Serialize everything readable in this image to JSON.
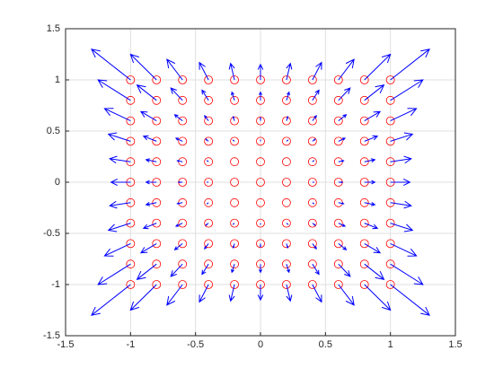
{
  "chart_data": {
    "type": "quiver",
    "x": [
      -1,
      -0.8,
      -0.6,
      -0.4,
      -0.2,
      0,
      0.2,
      0.4,
      0.6,
      0.8,
      1
    ],
    "y": [
      -1,
      -0.8,
      -0.6,
      -0.4,
      -0.2,
      0,
      0.2,
      0.4,
      0.6,
      0.8,
      1
    ],
    "u": [
      [
        -0.3,
        -0.2,
        -0.12,
        -0.07,
        -0.03,
        0,
        0.03,
        0.07,
        0.12,
        0.2,
        0.3
      ],
      [
        -0.25,
        -0.15,
        -0.09,
        -0.05,
        -0.02,
        0,
        0.02,
        0.05,
        0.09,
        0.15,
        0.25
      ],
      [
        -0.2,
        -0.12,
        -0.06,
        -0.03,
        -0.01,
        0,
        0.01,
        0.03,
        0.06,
        0.12,
        0.2
      ],
      [
        -0.17,
        -0.1,
        -0.05,
        -0.02,
        -0.01,
        0,
        0.01,
        0.02,
        0.05,
        0.1,
        0.17
      ],
      [
        -0.16,
        -0.08,
        -0.04,
        -0.01,
        0,
        0,
        0,
        0.01,
        0.04,
        0.08,
        0.16
      ],
      [
        -0.15,
        -0.08,
        -0.03,
        -0.01,
        0,
        0,
        0,
        0.01,
        0.03,
        0.08,
        0.15
      ],
      [
        -0.16,
        -0.08,
        -0.04,
        -0.01,
        0,
        0,
        0,
        0.01,
        0.04,
        0.08,
        0.16
      ],
      [
        -0.17,
        -0.1,
        -0.05,
        -0.02,
        -0.01,
        0,
        0.01,
        0.02,
        0.05,
        0.1,
        0.17
      ],
      [
        -0.2,
        -0.12,
        -0.06,
        -0.03,
        -0.01,
        0,
        0.01,
        0.03,
        0.06,
        0.12,
        0.2
      ],
      [
        -0.25,
        -0.15,
        -0.09,
        -0.05,
        -0.02,
        0,
        0.02,
        0.05,
        0.09,
        0.15,
        0.25
      ],
      [
        -0.3,
        -0.2,
        -0.12,
        -0.07,
        -0.03,
        0,
        0.03,
        0.07,
        0.12,
        0.2,
        0.3
      ]
    ],
    "v": [
      [
        -0.3,
        -0.25,
        -0.2,
        -0.17,
        -0.16,
        -0.15,
        -0.16,
        -0.17,
        -0.2,
        -0.25,
        -0.3
      ],
      [
        -0.2,
        -0.15,
        -0.12,
        -0.1,
        -0.08,
        -0.08,
        -0.08,
        -0.1,
        -0.12,
        -0.15,
        -0.2
      ],
      [
        -0.12,
        -0.09,
        -0.06,
        -0.05,
        -0.04,
        -0.03,
        -0.04,
        -0.05,
        -0.06,
        -0.09,
        -0.12
      ],
      [
        -0.07,
        -0.05,
        -0.03,
        -0.02,
        -0.01,
        -0.01,
        -0.01,
        -0.02,
        -0.03,
        -0.05,
        -0.07
      ],
      [
        -0.03,
        -0.02,
        -0.01,
        -0.01,
        0,
        0,
        0,
        -0.01,
        -0.01,
        -0.02,
        -0.03
      ],
      [
        0,
        0,
        0,
        0,
        0,
        0,
        0,
        0,
        0,
        0,
        0
      ],
      [
        0.03,
        0.02,
        0.01,
        0.01,
        0,
        0,
        0,
        0.01,
        0.01,
        0.02,
        0.03
      ],
      [
        0.07,
        0.05,
        0.03,
        0.02,
        0.01,
        0.01,
        0.01,
        0.02,
        0.03,
        0.05,
        0.07
      ],
      [
        0.12,
        0.09,
        0.06,
        0.05,
        0.04,
        0.03,
        0.04,
        0.05,
        0.06,
        0.09,
        0.12
      ],
      [
        0.2,
        0.15,
        0.12,
        0.1,
        0.08,
        0.08,
        0.08,
        0.1,
        0.12,
        0.15,
        0.2
      ],
      [
        0.3,
        0.25,
        0.2,
        0.17,
        0.16,
        0.15,
        0.16,
        0.17,
        0.2,
        0.25,
        0.3
      ]
    ],
    "point_color": "#ff0000",
    "arrow_color": "#0000ff",
    "xlim": [
      -1.5,
      1.5
    ],
    "ylim": [
      -1.5,
      1.5
    ],
    "xticks": [
      -1.5,
      -1,
      -0.5,
      0,
      0.5,
      1,
      1.5
    ],
    "yticks": [
      -1.5,
      -1,
      -0.5,
      0,
      0.5,
      1,
      1.5
    ],
    "grid": true
  }
}
